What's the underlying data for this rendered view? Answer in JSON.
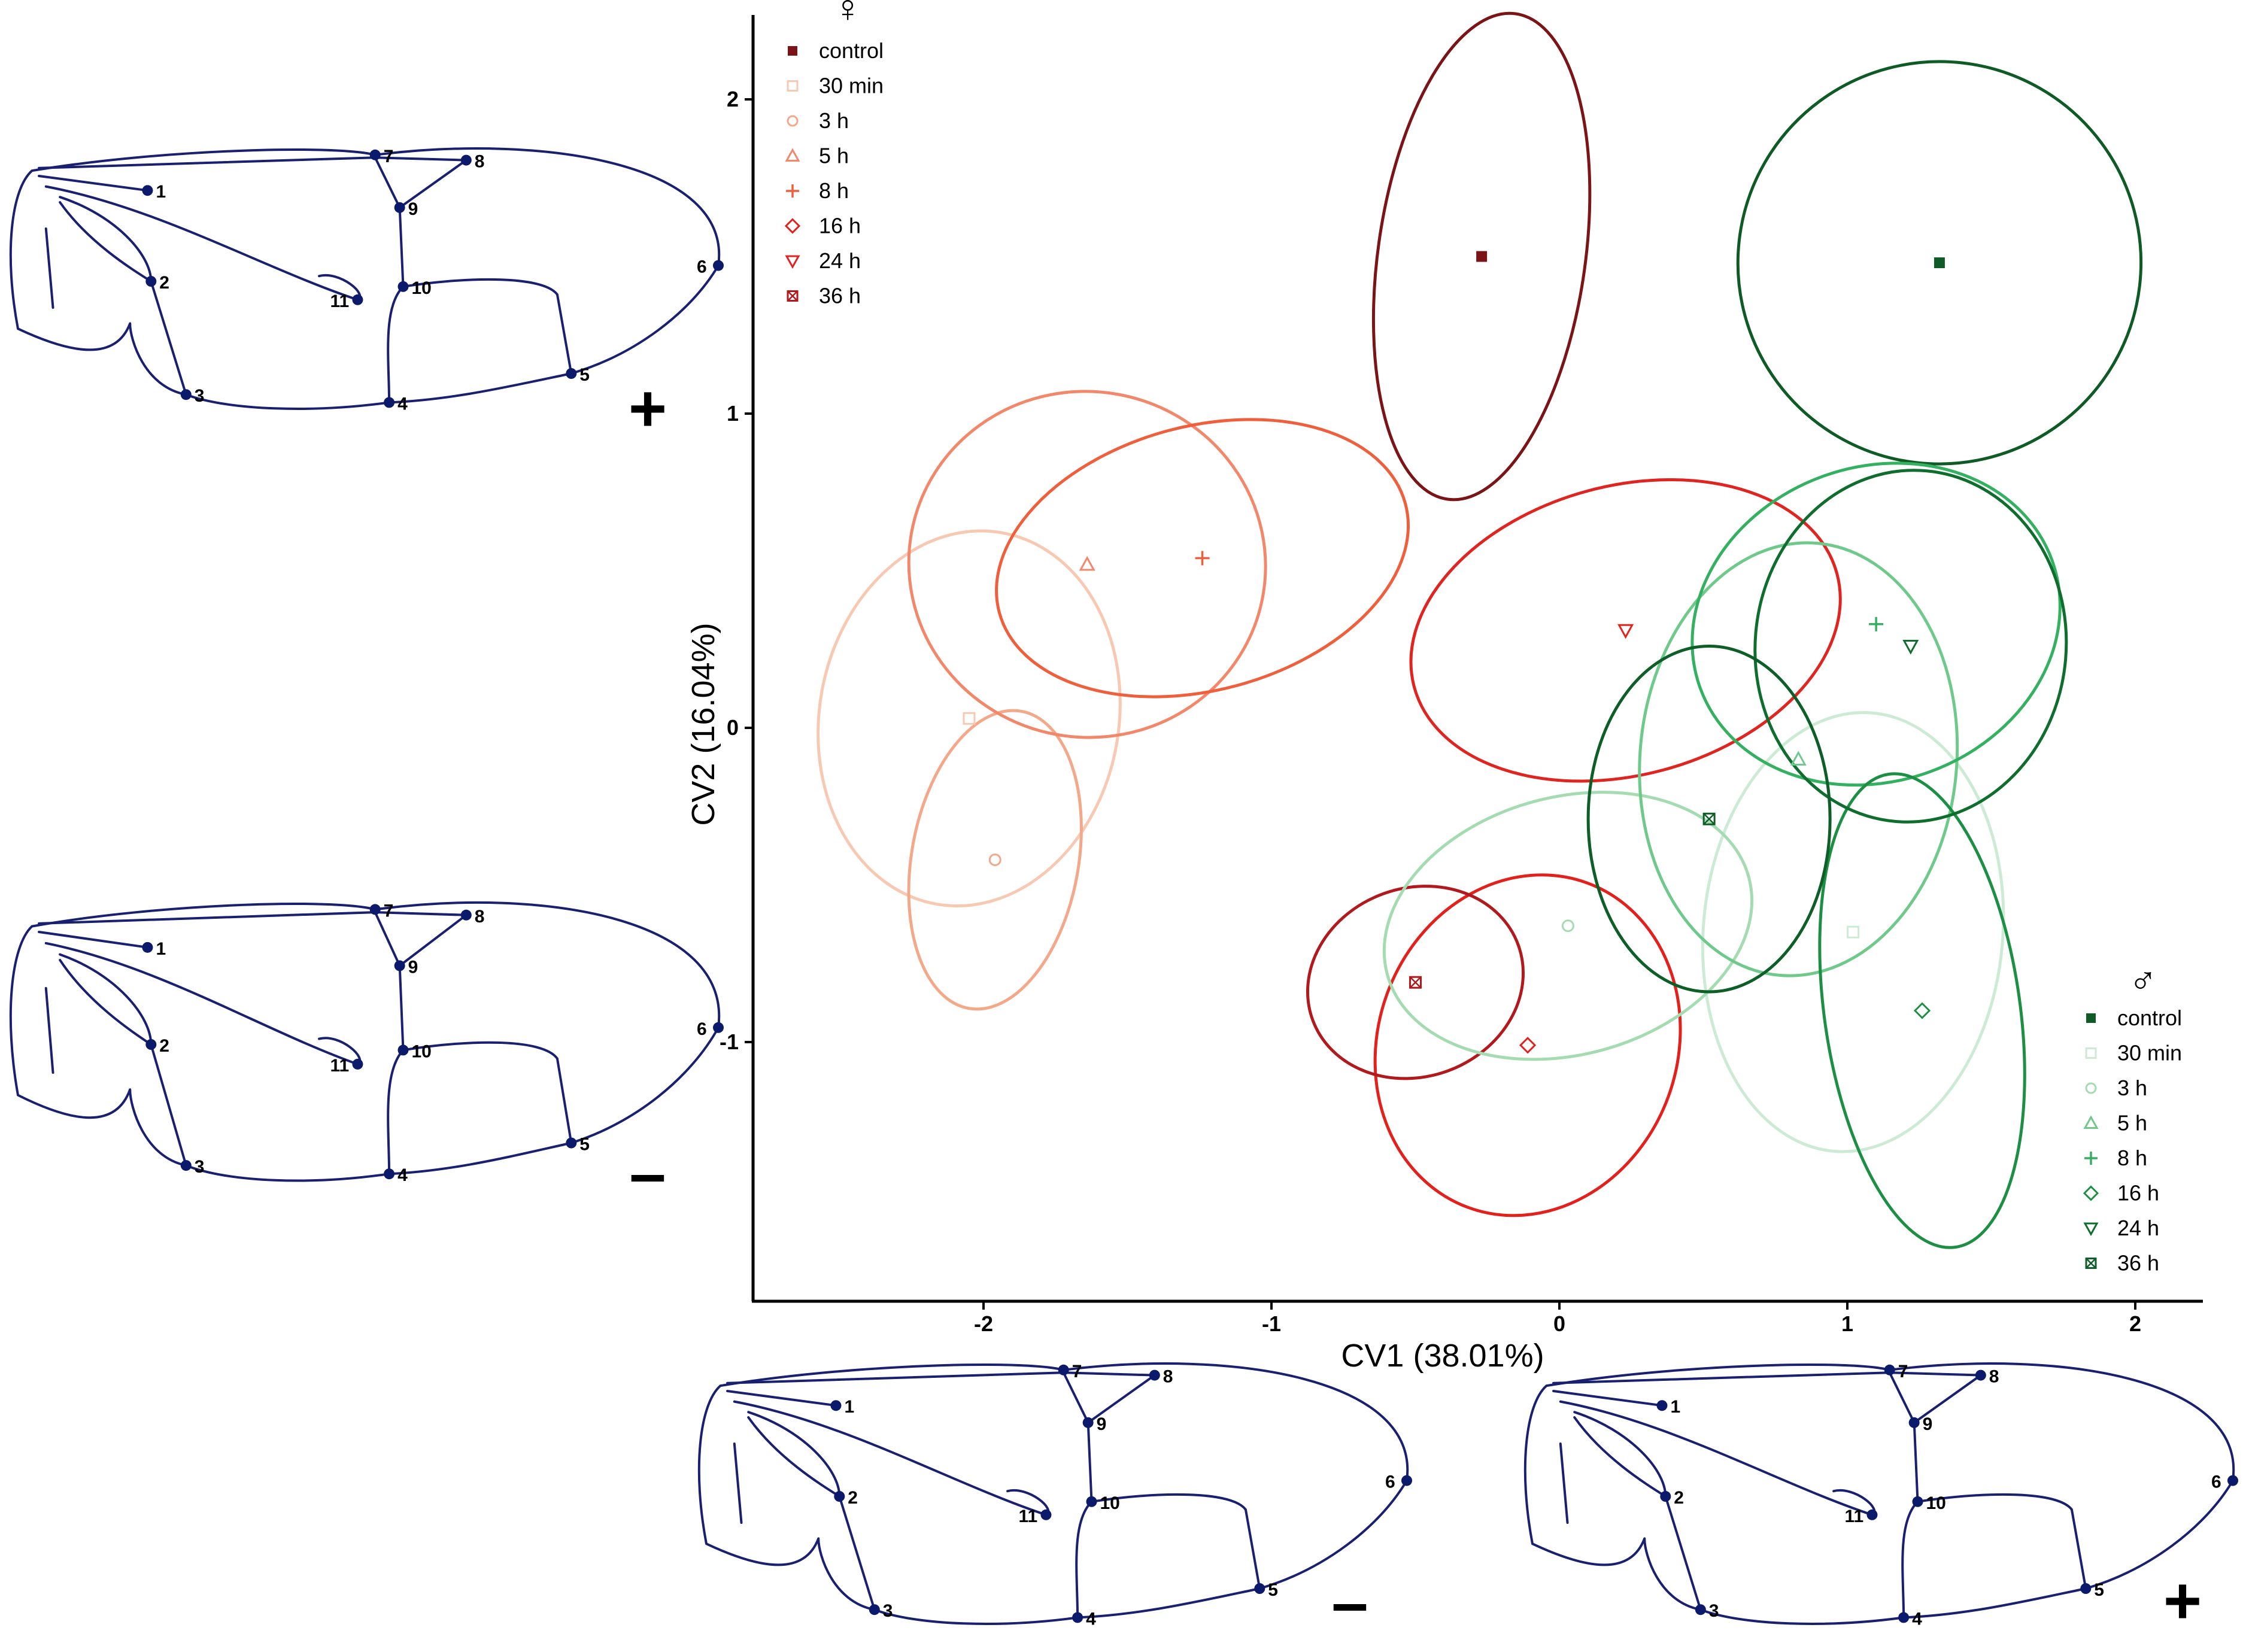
{
  "chart_data": {
    "type": "scatter",
    "title": "",
    "xlabel": "CV1 (38.01%)",
    "ylabel": "CV2 (16.04%)",
    "xlim": [
      -2.8,
      2.25
    ],
    "ylim": [
      -1.83,
      2.27
    ],
    "x_ticks": [
      "-2",
      "-1",
      "0",
      "1",
      "2"
    ],
    "y_ticks": [
      "-1",
      "0",
      "1",
      "2"
    ],
    "legend_female": {
      "symbol": "♀",
      "placement": "top-left",
      "entries": [
        "control",
        "30 min",
        "3 h",
        "5 h",
        "8 h",
        "16 h",
        "24 h",
        "36 h"
      ]
    },
    "legend_male": {
      "symbol": "♂",
      "placement": "bottom-right",
      "entries": [
        "control",
        "30 min",
        "3 h",
        "5 h",
        "8 h",
        "16 h",
        "24 h",
        "36 h"
      ]
    },
    "series": [
      {
        "group": "female",
        "name": "control",
        "marker": "square-filled",
        "color": "#7b1417",
        "x": -0.27,
        "y": 1.5,
        "ellipse": {
          "rx": 0.36,
          "ry": 0.78,
          "angle_deg": 8
        }
      },
      {
        "group": "female",
        "name": "30 min",
        "marker": "square-open",
        "color": "#f7c9b3",
        "x": -2.05,
        "y": 0.03,
        "ellipse": {
          "rx": 0.52,
          "ry": 0.6,
          "angle_deg": 10
        }
      },
      {
        "group": "female",
        "name": "3 h",
        "marker": "circle-open",
        "color": "#f3a88a",
        "x": -1.96,
        "y": -0.42,
        "ellipse": {
          "rx": 0.29,
          "ry": 0.48,
          "angle_deg": 10
        }
      },
      {
        "group": "female",
        "name": "5 h",
        "marker": "triangle-up-open",
        "color": "#f2876a",
        "x": -1.64,
        "y": 0.52,
        "ellipse": {
          "rx": 0.62,
          "ry": 0.55,
          "angle_deg": 10
        }
      },
      {
        "group": "female",
        "name": "8 h",
        "marker": "plus",
        "color": "#ef5f3c",
        "x": -1.24,
        "y": 0.54,
        "ellipse": {
          "rx": 0.73,
          "ry": 0.42,
          "angle_deg": -15
        }
      },
      {
        "group": "female",
        "name": "16 h",
        "marker": "diamond-open",
        "color": "#e3201c",
        "x": -0.11,
        "y": -1.01,
        "ellipse": {
          "rx": 0.52,
          "ry": 0.55,
          "angle_deg": 20
        }
      },
      {
        "group": "female",
        "name": "24 h",
        "marker": "triangle-down-open",
        "color": "#e02521",
        "x": 0.23,
        "y": 0.31,
        "ellipse": {
          "rx": 0.76,
          "ry": 0.46,
          "angle_deg": -15
        }
      },
      {
        "group": "female",
        "name": "36 h",
        "marker": "square-crossed",
        "color": "#b1191d",
        "x": -0.5,
        "y": -0.81,
        "ellipse": {
          "rx": 0.38,
          "ry": 0.3,
          "angle_deg": -20
        }
      },
      {
        "group": "male",
        "name": "control",
        "marker": "square-filled",
        "color": "#0f5b26",
        "x": 1.32,
        "y": 1.48,
        "ellipse": {
          "rx": 0.7,
          "ry": 0.64,
          "angle_deg": -15
        }
      },
      {
        "group": "male",
        "name": "30 min",
        "marker": "square-open",
        "color": "#cdebd4",
        "x": 1.02,
        "y": -0.65,
        "ellipse": {
          "rx": 0.52,
          "ry": 0.7,
          "angle_deg": 5
        }
      },
      {
        "group": "male",
        "name": "3 h",
        "marker": "circle-open",
        "color": "#a5dbb1",
        "x": 0.03,
        "y": -0.63,
        "ellipse": {
          "rx": 0.65,
          "ry": 0.41,
          "angle_deg": -15
        }
      },
      {
        "group": "male",
        "name": "5 h",
        "marker": "triangle-up-open",
        "color": "#6fc98a",
        "x": 0.83,
        "y": -0.1,
        "ellipse": {
          "rx": 0.55,
          "ry": 0.69,
          "angle_deg": 5
        }
      },
      {
        "group": "male",
        "name": "8 h",
        "marker": "plus",
        "color": "#33b060",
        "x": 1.1,
        "y": 0.33,
        "ellipse": {
          "rx": 0.65,
          "ry": 0.5,
          "angle_deg": -20
        }
      },
      {
        "group": "male",
        "name": "16 h",
        "marker": "diamond-open",
        "color": "#1d8f44",
        "x": 1.26,
        "y": -0.9,
        "ellipse": {
          "rx": 0.34,
          "ry": 0.76,
          "angle_deg": -8
        }
      },
      {
        "group": "male",
        "name": "24 h",
        "marker": "triangle-down-open",
        "color": "#0f6d2e",
        "x": 1.22,
        "y": 0.26,
        "ellipse": {
          "rx": 0.54,
          "ry": 0.56,
          "angle_deg": 5
        }
      },
      {
        "group": "male",
        "name": "36 h",
        "marker": "square-crossed",
        "color": "#0d5e27",
        "x": 0.52,
        "y": -0.29,
        "ellipse": {
          "rx": 0.42,
          "ry": 0.55,
          "angle_deg": 0
        }
      }
    ]
  },
  "wings": [
    {
      "position": "top-left",
      "sign": "+",
      "landmarks": [
        "1",
        "2",
        "3",
        "4",
        "5",
        "6",
        "7",
        "8",
        "9",
        "10",
        "11"
      ]
    },
    {
      "position": "middle-left",
      "sign": "-",
      "landmarks": [
        "1",
        "2",
        "3",
        "4",
        "5",
        "6",
        "7",
        "8",
        "9",
        "10",
        "11"
      ]
    },
    {
      "position": "bottom-center",
      "sign": "-",
      "landmarks": [
        "1",
        "2",
        "3",
        "4",
        "5",
        "6",
        "7",
        "8",
        "9",
        "10",
        "11"
      ]
    },
    {
      "position": "bottom-right",
      "sign": "+",
      "landmarks": [
        "1",
        "2",
        "3",
        "4",
        "5",
        "6",
        "7",
        "8",
        "9",
        "10",
        "11"
      ]
    }
  ],
  "colors": {
    "axis": "#000000",
    "wing_vein": "#1a2070",
    "landmark": "#0b1a6a"
  }
}
